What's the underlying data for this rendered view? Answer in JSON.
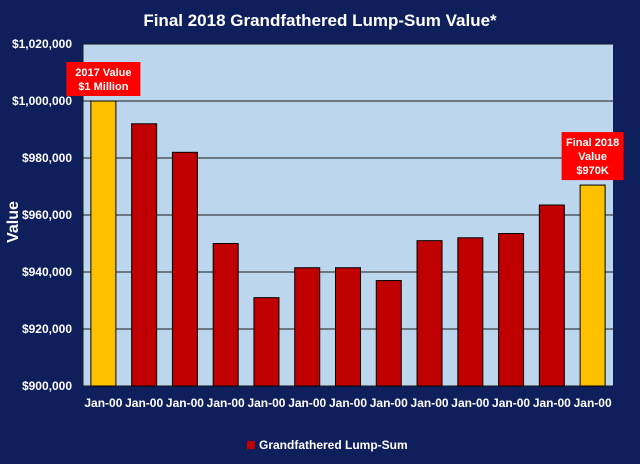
{
  "chart_data": {
    "type": "bar",
    "title": "Final 2018 Grandfathered Lump-Sum Value*",
    "xlabel": "",
    "ylabel": "Value",
    "ylim": [
      900000,
      1020000
    ],
    "yticks": [
      900000,
      920000,
      940000,
      960000,
      980000,
      1000000,
      1020000
    ],
    "ytick_labels": [
      "$900,000",
      "$920,000",
      "$940,000",
      "$960,000",
      "$980,000",
      "$1,000,000",
      "$1,020,000"
    ],
    "categories": [
      "Jan-00",
      "Jan-00",
      "Jan-00",
      "Jan-00",
      "Jan-00",
      "Jan-00",
      "Jan-00",
      "Jan-00",
      "Jan-00",
      "Jan-00",
      "Jan-00",
      "Jan-00",
      "Jan-00"
    ],
    "series": [
      {
        "name": "Grandfathered Lump-Sum",
        "values": [
          1000000,
          992000,
          982000,
          950000,
          931000,
          941500,
          941500,
          937000,
          951000,
          952000,
          953500,
          963500,
          970500
        ]
      }
    ],
    "highlighted_indices": [
      0,
      12
    ],
    "grid": "horizontal",
    "legend_position": "bottom",
    "annotations": [
      {
        "bar_index": 0,
        "lines": [
          "2017 Value",
          "$1 Million"
        ]
      },
      {
        "bar_index": 12,
        "lines": [
          "Final 2018",
          "Value",
          "$970K"
        ]
      }
    ],
    "colors": {
      "background": "#0f1f5c",
      "plot_area": "#bcd6ee",
      "bar": "#c00000",
      "bar_highlight": "#ffc000",
      "annotation_bg": "#ff0000",
      "text": "#ffffff"
    }
  }
}
